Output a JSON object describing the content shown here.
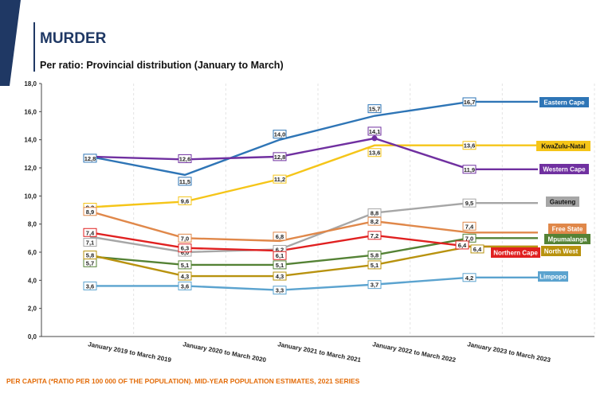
{
  "header": {
    "title": "MURDER",
    "subtitle": "Per ratio: Provincial distribution (January to March)"
  },
  "footer": {
    "note": "PER CAPITA (*RATIO PER 100 000 OF THE POPULATION). MID-YEAR POPULATION ESTIMATES, 2021 SERIES"
  },
  "colors": {
    "title": "#1f3864",
    "footer": "#e36c09"
  },
  "chart_data": {
    "type": "line",
    "title": "",
    "xlabel": "",
    "ylabel": "",
    "ylim": [
      0,
      18
    ],
    "yticks": [
      "0,0",
      "2,0",
      "4,0",
      "6,0",
      "8,0",
      "10,0",
      "12,0",
      "14,0",
      "16,0",
      "18,0"
    ],
    "grid": "vertical dashed",
    "categories": [
      "January 2019 to March 2019",
      "January 2020 to March 2020",
      "January 2021 to March 2021",
      "January 2022 to March 2022",
      "January 2023 to March 2023"
    ],
    "series": [
      {
        "name": "Eastern Cape",
        "color": "#2e75b6",
        "values": [
          12.8,
          11.5,
          14.0,
          15.7,
          16.7
        ],
        "labels": [
          "12,8",
          "11,5",
          "14,0",
          "15,7",
          "16,7"
        ]
      },
      {
        "name": "KwaZulu-Natal",
        "color": "#f5c518",
        "values": [
          9.2,
          9.6,
          11.2,
          13.6,
          13.6
        ],
        "labels": [
          "9,2",
          "9,6",
          "11,2",
          "13,6",
          "13,6"
        ]
      },
      {
        "name": "Western Cape",
        "color": "#7030a0",
        "values": [
          12.8,
          12.6,
          12.8,
          14.1,
          11.9
        ],
        "labels": [
          "",
          "12,6",
          "12,8",
          "14,1",
          "11,9"
        ]
      },
      {
        "name": "Gauteng",
        "color": "#a6a6a6",
        "values": [
          7.1,
          6.0,
          6.2,
          8.8,
          9.5
        ],
        "labels": [
          "7,1",
          "6,0",
          "6,2",
          "8,8",
          "9,5"
        ]
      },
      {
        "name": "Free State",
        "color": "#e0884a",
        "values": [
          8.9,
          7.0,
          6.8,
          8.2,
          7.4
        ],
        "labels": [
          "8,9",
          "7,0",
          "6,8",
          "8,2",
          "7,4"
        ]
      },
      {
        "name": "Mpumalanga",
        "color": "#548235",
        "values": [
          5.7,
          5.1,
          5.1,
          5.8,
          7.0
        ],
        "labels": [
          "5,7",
          "5,1",
          "5,1",
          "5,8",
          "7,0"
        ]
      },
      {
        "name": "Northern Cape",
        "color": "#e02020",
        "values": [
          7.4,
          6.3,
          6.1,
          7.2,
          6.4
        ],
        "labels": [
          "7,4",
          "6,3",
          "6,1",
          "7,2",
          "6,4"
        ]
      },
      {
        "name": "North West",
        "color": "#b8920e",
        "values": [
          5.8,
          4.3,
          4.3,
          5.1,
          6.4
        ],
        "labels": [
          "5,8",
          "4,3",
          "4,3",
          "5,1",
          "6,4"
        ]
      },
      {
        "name": "Limpopo",
        "color": "#5ba3cf",
        "values": [
          3.6,
          3.6,
          3.3,
          3.7,
          4.2
        ],
        "labels": [
          "3,6",
          "3,6",
          "3,3",
          "3,7",
          "4,2"
        ]
      }
    ],
    "end_labels": [
      "Eastern Cape",
      "KwaZulu-Natal",
      "Western Cape",
      "Gauteng",
      "Free State",
      "Mpumalanga",
      "Northern Cape",
      "North West",
      "Limpopo"
    ]
  }
}
